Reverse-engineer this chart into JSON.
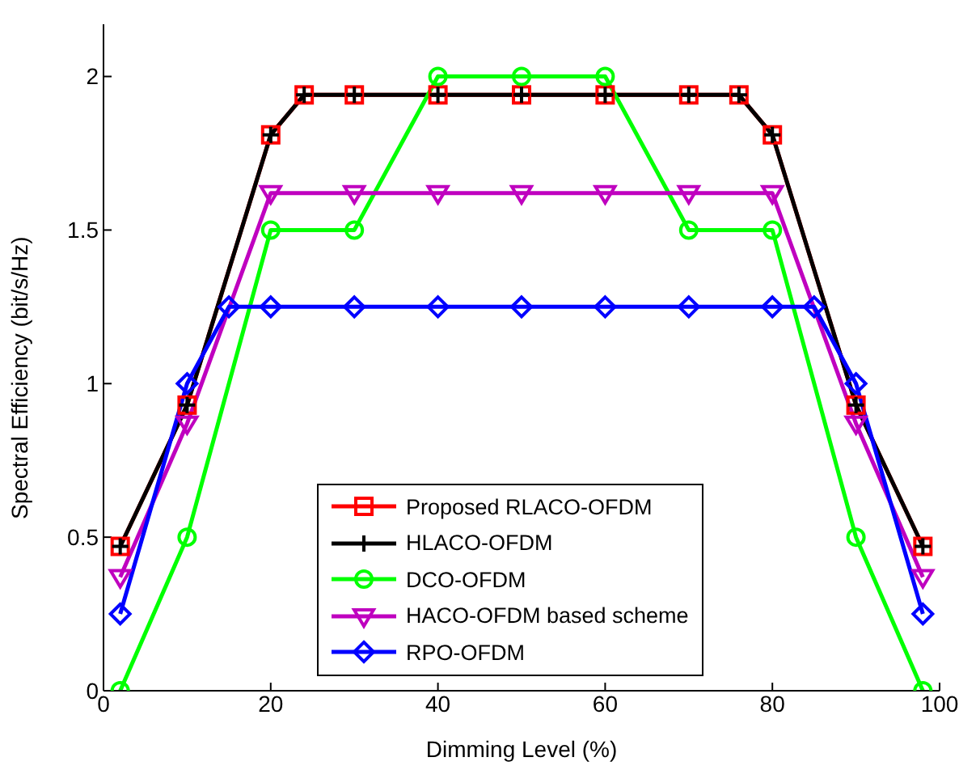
{
  "chart_data": {
    "type": "line",
    "xlabel": "Dimming Level (%)",
    "ylabel": "Spectral Efficiency (bit/s/Hz)",
    "xlim": [
      0,
      100
    ],
    "xticks": [
      0,
      20,
      40,
      60,
      80,
      100
    ],
    "ylim": [
      0,
      2.17
    ],
    "yticks": [
      0,
      0.5,
      1,
      1.5,
      2
    ],
    "grid": false,
    "legend": "bottom",
    "line_style": "solid",
    "series": [
      {
        "name": "Proposed RLACO-OFDM",
        "color": "#ff0000",
        "marker": "square",
        "x": [
          2,
          10,
          20,
          24,
          30,
          40,
          50,
          60,
          70,
          76,
          80,
          90,
          98
        ],
        "values": [
          0.47,
          0.93,
          1.81,
          1.94,
          1.94,
          1.94,
          1.94,
          1.94,
          1.94,
          1.94,
          1.81,
          0.93,
          0.47
        ]
      },
      {
        "name": "HLACO-OFDM",
        "color": "#000000",
        "marker": "cross",
        "x": [
          2,
          10,
          20,
          24,
          30,
          40,
          50,
          60,
          70,
          76,
          80,
          90,
          98
        ],
        "values": [
          0.47,
          0.93,
          1.81,
          1.94,
          1.94,
          1.94,
          1.94,
          1.94,
          1.94,
          1.94,
          1.81,
          0.93,
          0.47
        ]
      },
      {
        "name": "DCO-OFDM",
        "color": "#00ff00",
        "marker": "circle",
        "x": [
          2,
          10,
          20,
          30,
          40,
          50,
          60,
          70,
          80,
          90,
          98
        ],
        "values": [
          0,
          0.5,
          1.5,
          1.5,
          2,
          2,
          2,
          1.5,
          1.5,
          0.5,
          0
        ]
      },
      {
        "name": "HACO-OFDM based scheme",
        "color": "#bf00bf",
        "marker": "triangle",
        "x": [
          2,
          10,
          20,
          30,
          40,
          50,
          60,
          70,
          80,
          90,
          98
        ],
        "values": [
          0.37,
          0.87,
          1.62,
          1.62,
          1.62,
          1.62,
          1.62,
          1.62,
          1.62,
          0.87,
          0.37
        ]
      },
      {
        "name": "RPO-OFDM",
        "color": "#0000ff",
        "marker": "diamond",
        "x": [
          2,
          10,
          15,
          20,
          30,
          40,
          50,
          60,
          70,
          80,
          85,
          90,
          98
        ],
        "values": [
          0.25,
          1,
          1.25,
          1.25,
          1.25,
          1.25,
          1.25,
          1.25,
          1.25,
          1.25,
          1.25,
          1,
          0.25
        ]
      }
    ]
  }
}
